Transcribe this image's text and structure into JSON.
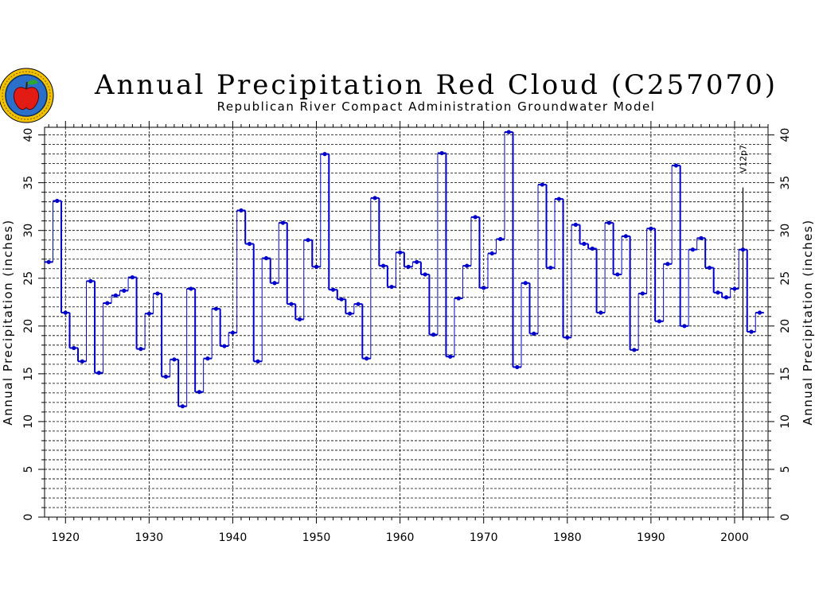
{
  "chart_data": {
    "type": "line",
    "step": true,
    "title": "Annual Precipitation Red Cloud (C257070)",
    "subtitle": "Republican River Compact Administration Groundwater Model",
    "ylabel": "Annual Precipitation (inches)",
    "ylabel_right": "Annual Precipitation (inches)",
    "xlim": [
      1917.5,
      2004
    ],
    "ylim": [
      0,
      40.8
    ],
    "x_ticks": [
      1920,
      1930,
      1940,
      1950,
      1960,
      1970,
      1980,
      1990,
      2000
    ],
    "y_ticks": [
      0,
      5,
      10,
      15,
      20,
      25,
      30,
      35,
      40
    ],
    "grid": true,
    "line_color": "#0000cc",
    "annotation": {
      "text": "V12p7",
      "x": 2001
    },
    "x": [
      1918,
      1919,
      1920,
      1921,
      1922,
      1923,
      1924,
      1925,
      1926,
      1927,
      1928,
      1929,
      1930,
      1931,
      1932,
      1933,
      1934,
      1935,
      1936,
      1937,
      1938,
      1939,
      1940,
      1941,
      1942,
      1943,
      1944,
      1945,
      1946,
      1947,
      1948,
      1949,
      1950,
      1951,
      1952,
      1953,
      1954,
      1955,
      1956,
      1957,
      1958,
      1959,
      1960,
      1961,
      1962,
      1963,
      1964,
      1965,
      1966,
      1967,
      1968,
      1969,
      1970,
      1971,
      1972,
      1973,
      1974,
      1975,
      1976,
      1977,
      1978,
      1979,
      1980,
      1981,
      1982,
      1983,
      1984,
      1985,
      1986,
      1987,
      1988,
      1989,
      1990,
      1991,
      1992,
      1993,
      1994,
      1995,
      1996,
      1997,
      1998,
      1999,
      2000,
      2001,
      2002,
      2003
    ],
    "values": [
      26.7,
      33.1,
      21.4,
      17.7,
      16.3,
      24.7,
      15.1,
      22.4,
      23.2,
      23.7,
      25.1,
      17.6,
      21.3,
      23.4,
      14.7,
      16.5,
      11.6,
      23.9,
      13.1,
      16.6,
      21.8,
      17.9,
      19.3,
      32.1,
      28.6,
      16.3,
      27.1,
      24.5,
      30.8,
      22.3,
      20.7,
      29.0,
      26.2,
      38.0,
      23.8,
      22.8,
      21.3,
      22.3,
      16.6,
      33.4,
      26.3,
      24.1,
      27.7,
      26.2,
      26.7,
      25.4,
      19.1,
      38.1,
      16.8,
      22.9,
      26.3,
      31.4,
      24.0,
      27.6,
      29.1,
      40.3,
      15.7,
      24.5,
      19.2,
      34.8,
      26.1,
      33.3,
      18.8,
      30.6,
      28.6,
      28.1,
      21.4,
      30.8,
      25.4,
      29.4,
      17.5,
      23.4,
      30.2,
      20.5,
      26.5,
      36.8,
      20.0,
      28.0,
      29.2,
      26.1,
      23.5,
      23.0,
      23.9,
      28.0,
      19.4,
      21.4
    ]
  },
  "logo": {
    "name": "state-seal-logo"
  }
}
